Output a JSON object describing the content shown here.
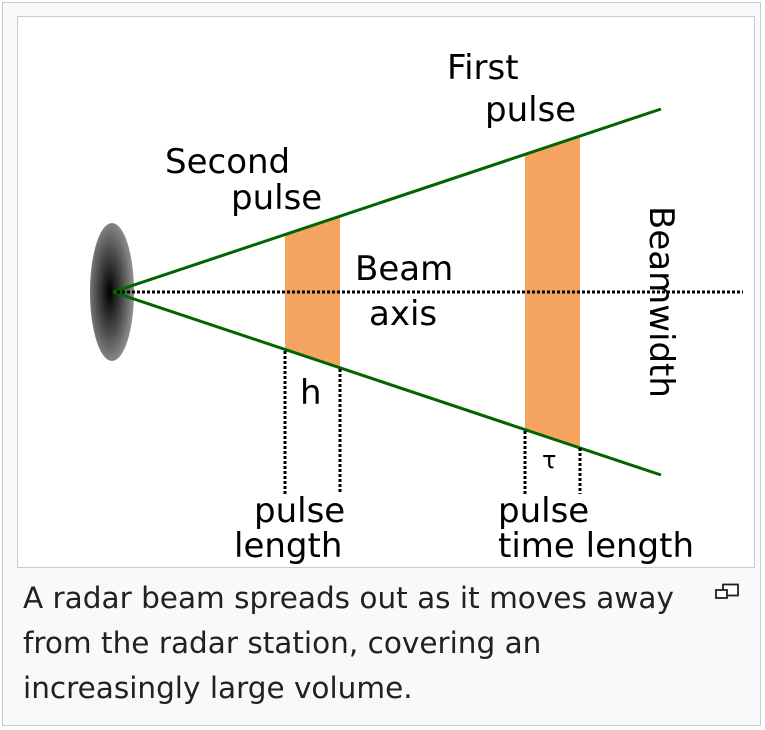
{
  "diagram": {
    "labels": {
      "first_pulse_line1": "First",
      "first_pulse_line2": "pulse",
      "second_pulse_line1": "Second",
      "second_pulse_line2": "pulse",
      "beam_axis_line1": "Beam",
      "beam_axis_line2": "axis",
      "beamwidth": "Beamwidth",
      "h": "h",
      "tau": "τ",
      "pulse_length_line1": "pulse",
      "pulse_length_line2": "length",
      "pulse_time_length_line1": "pulse",
      "pulse_time_length_line2": "time length"
    },
    "colors": {
      "beam_edge": "#006400",
      "pulse_fill": "#f4a460",
      "axis": "#000000",
      "antenna_center": "#000000",
      "antenna_edge": "#8a8a8a"
    }
  },
  "caption": {
    "text": "A radar beam spreads out as it moves away from the radar station, covering an increasingly large volume."
  },
  "icons": {
    "magnify": "magnify-clip-icon"
  }
}
